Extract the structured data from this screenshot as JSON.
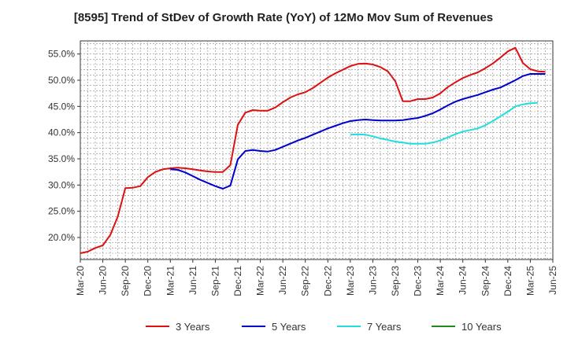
{
  "chart_data": {
    "type": "line",
    "title": "[8595]  Trend of StDev of Growth Rate (YoY) of 12Mo Mov Sum of Revenues",
    "xlabel": "",
    "ylabel": "",
    "ylim": [
      15.8,
      57.5
    ],
    "y_ticks": [
      20.0,
      25.0,
      30.0,
      35.0,
      40.0,
      45.0,
      50.0,
      55.0
    ],
    "y_tick_labels": [
      "20.0%",
      "25.0%",
      "30.0%",
      "35.0%",
      "40.0%",
      "45.0%",
      "50.0%",
      "55.0%"
    ],
    "x_range": [
      "Mar-20",
      "Jun-25"
    ],
    "x_tick_labels": [
      "Mar-20",
      "Jun-20",
      "Sep-20",
      "Dec-20",
      "Mar-21",
      "Jun-21",
      "Sep-21",
      "Dec-21",
      "Mar-22",
      "Jun-22",
      "Sep-22",
      "Dec-22",
      "Mar-23",
      "Jun-23",
      "Sep-23",
      "Dec-23",
      "Mar-24",
      "Jun-24",
      "Sep-24",
      "Dec-24",
      "Mar-25",
      "Jun-25"
    ],
    "grid": true,
    "legend_position": "bottom",
    "series": [
      {
        "name": "3 Years",
        "color": "#dd1111",
        "start": "Mar-20",
        "values": [
          17.0,
          17.3,
          18.0,
          18.5,
          20.5,
          24.0,
          29.4,
          29.5,
          29.8,
          31.5,
          32.5,
          33.0,
          33.2,
          33.3,
          33.2,
          33.0,
          32.8,
          32.6,
          32.5,
          32.5,
          33.8,
          41.5,
          43.8,
          44.3,
          44.2,
          44.2,
          44.8,
          45.8,
          46.7,
          47.3,
          47.7,
          48.5,
          49.5,
          50.5,
          51.3,
          52.0,
          52.7,
          53.1,
          53.2,
          53.0,
          52.5,
          51.7,
          49.8,
          46.0,
          46.0,
          46.4,
          46.4,
          46.7,
          47.5,
          48.7,
          49.6,
          50.4,
          51.0,
          51.5,
          52.3,
          53.2,
          54.3,
          55.5,
          56.2,
          53.3,
          52.1,
          51.7,
          51.6
        ]
      },
      {
        "name": "5 Years",
        "color": "#0000cc",
        "start": "Mar-21",
        "values": [
          33.0,
          32.9,
          32.4,
          31.7,
          31.0,
          30.4,
          29.8,
          29.3,
          29.9,
          34.9,
          36.5,
          36.7,
          36.5,
          36.4,
          36.7,
          37.3,
          37.9,
          38.5,
          39.0,
          39.6,
          40.2,
          40.8,
          41.3,
          41.8,
          42.2,
          42.4,
          42.5,
          42.4,
          42.3,
          42.3,
          42.3,
          42.4,
          42.6,
          42.8,
          43.2,
          43.7,
          44.4,
          45.2,
          45.9,
          46.4,
          46.8,
          47.2,
          47.7,
          48.2,
          48.6,
          49.3,
          50.0,
          50.8,
          51.2,
          51.2,
          51.2
        ]
      },
      {
        "name": "7 Years",
        "color": "#22dddd",
        "start": "Mar-23",
        "values": [
          39.6,
          39.7,
          39.6,
          39.3,
          38.9,
          38.6,
          38.3,
          38.1,
          37.9,
          37.9,
          37.9,
          38.1,
          38.5,
          39.1,
          39.7,
          40.2,
          40.5,
          40.8,
          41.4,
          42.2,
          43.1,
          44.0,
          45.0,
          45.4,
          45.6,
          45.7
        ]
      },
      {
        "name": "10 Years",
        "color": "#228822",
        "start": "Mar-25",
        "values": []
      }
    ]
  }
}
